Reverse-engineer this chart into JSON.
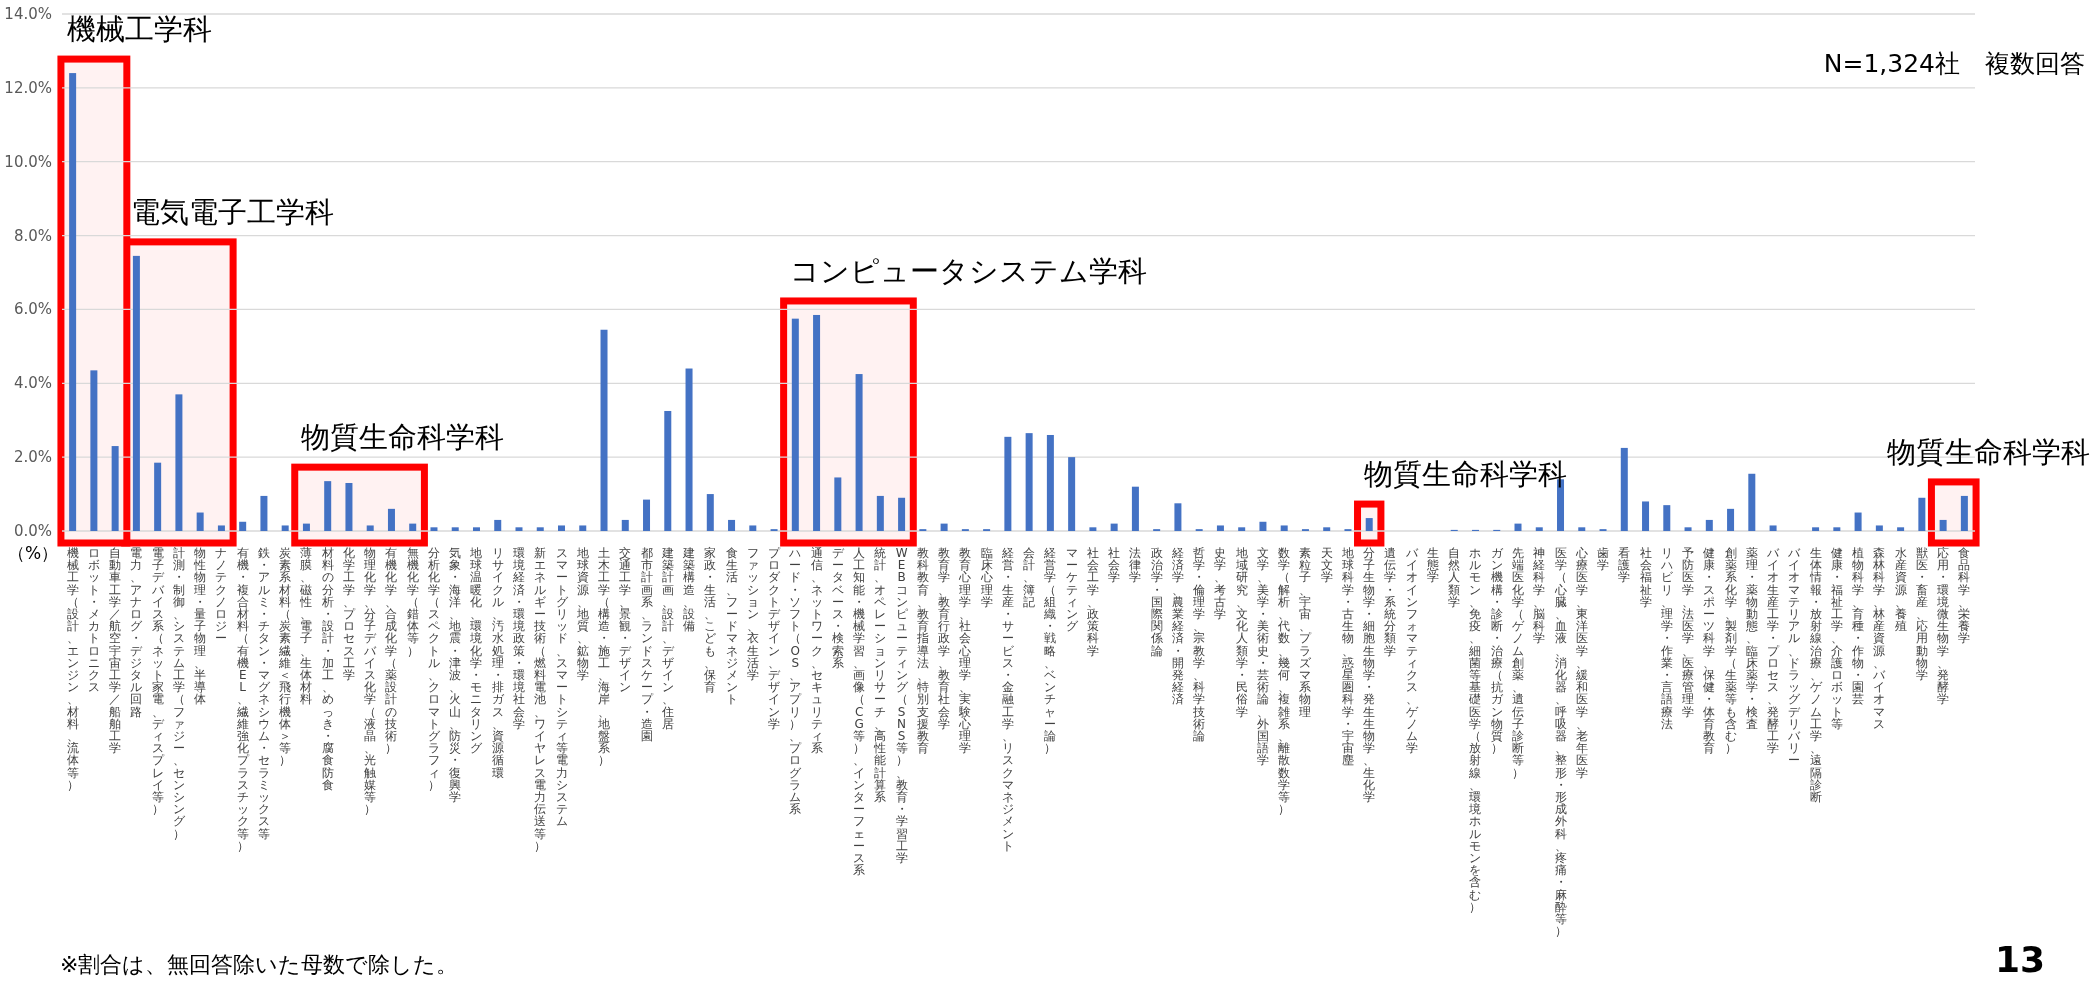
{
  "chart_data": {
    "type": "bar",
    "ylabel": "（%）",
    "color": "#4472c4",
    "grid": "y",
    "ylim": [
      0,
      14
    ],
    "yticks": [
      {
        "value": 0,
        "label": "0.0%"
      },
      {
        "value": 2,
        "label": "2.0%"
      },
      {
        "value": 4,
        "label": "4.0%"
      },
      {
        "value": 6,
        "label": "6.0%"
      },
      {
        "value": 8,
        "label": "8.0%"
      },
      {
        "value": 10,
        "label": "10.0%"
      },
      {
        "value": 12,
        "label": "12.0%"
      },
      {
        "value": 14,
        "label": "14.0%"
      }
    ],
    "categories": [
      "機械工学（設計、エンジン、材料、流体等）",
      "ロボット・メカトロニクス",
      "自動車工学／航空宇宙工学／船舶工学",
      "電力、アナログ・デジタル回路",
      "電子デバイス系（ネット家電、ディスプレイ等）",
      "計測・制御、システム工学（ファジー、センシング）",
      "物性物理・量子物理、半導体",
      "ナノテクノロジー",
      "有機・複合材料（有機EL、繊維強化プラスチック等）",
      "鉄・アルミ・チタン・マグネシウム・セラミックス等",
      "炭素系材料（炭素繊維＜飛行機体＞等）",
      "薄膜、磁性、電子、生体材料",
      "材料の分析・設計・加工、めっき・腐食防食",
      "化学工学、プロセス工学",
      "物理化学、分子デバイス化学（液晶、光触媒等）",
      "有機化学、合成化学（薬設計の技術）",
      "無機化学（錯体等）",
      "分析化学（スペクトル、クロマトグラフィ）",
      "気象・海洋、地震・津波、火山、防災・復興学",
      "地球温暖化、環境化学・モニタリング",
      "リサイクル、汚水処理・排ガス、資源循環",
      "環境経済・環境政策・環境社会学",
      "新エネルギー技術（燃料電池、ワイヤレス電力伝送等）",
      "スマートグリッド、スマートシティ等電力システム",
      "地球資源、地質、鉱物学",
      "土木工学（構造・施工、海岸、地盤系）",
      "交通工学、景観・デザイン",
      "都市計画系、ランドスケープ・造園",
      "建築計画、設計、デザイン、住居",
      "建築構造、設備",
      "家政・生活、こども、保育",
      "食生活、フードマネジメント",
      "ファッション、衣生活学",
      "プロダクトデザイン、デザイン学",
      "ハード・ソフト（OS、アプリ）、プログラム系",
      "通信、ネットワーク、セキュリティ系",
      "データベース・検索系",
      "人工知能・機械学習、画像（CG等）、インターフェース系",
      "統計、オペレーションリサーチ、高性能計算系",
      "WEBコンピューティング（SNS等）、教育・学習工学",
      "教科教育、教育指導法、特別支援教育",
      "教育学、教育行政学、教育社会学",
      "教育心理学、社会心理学、実験心理学",
      "臨床心理学",
      "経営・生産・サービス・金融工学、リスクマネジメント",
      "会計、簿記",
      "経営学（組織・戦略、ベンチャー論）",
      "マーケティング",
      "社会工学、政策科学",
      "社会学",
      "法律学",
      "政治学・国際関係論",
      "経済学、農業経済・開発経済",
      "哲学・倫理学、宗教学、科学技術論",
      "史学、考古学",
      "地域研究、文化人類学・民俗学",
      "文学、美学・美術史・芸術論、外国語学",
      "数学（解析、代数、幾何、複雑系、離散数学等）",
      "素粒子、宇宙、プラズマ系物理",
      "天文学",
      "地球科学・古生物、惑星圏科学・宇宙塵",
      "分子生物学・細胞生物学・発生生物学、生化学",
      "遺伝学・系統分類学",
      "バイオインフォマティクス、ゲノム学",
      "生態学",
      "自然人類学",
      "ホルモン、免疫、細菌等基礎医学（放射線、環境ホルモンを含む）",
      "ガン機構・診断・治療（抗ガン物質）",
      "先端医化学（ゲノム創薬、遺伝子診断等）",
      "神経科学、脳科学",
      "医学（心臓、血液、消化器、呼吸器、整形・形成外科、疼痛・麻酔等）",
      "心療医学、東洋医学、緩和医学、老年医学",
      "歯学",
      "看護学",
      "社会福祉学",
      "リハビリ、理学・作業・言語療法",
      "予防医学、法医学、医療管理学",
      "健康・スポーツ科学、保健・体育教育",
      "創薬系化学、製剤学（生薬等も含む）",
      "薬理・薬物動態、臨床薬学・検査",
      "バイオ生産工学・プロセス、発酵工学",
      "バイオマテリアル、ドラッグデリバリー",
      "生体情報・放射線治療、ゲノム工学、遠隔診断",
      "健康・福祉工学、介護ロボット等",
      "植物科学、育種・作物・園芸",
      "森林科学、林産資源、バイオマス",
      "水産資源、養殖",
      "獣医・畜産、応用動物学",
      "応用・環境微生物学、発酵学",
      "食品科学、栄養学"
    ],
    "values": [
      12.4,
      4.35,
      2.3,
      7.45,
      1.85,
      3.7,
      0.5,
      0.15,
      0.25,
      0.95,
      0.15,
      0.2,
      1.35,
      1.3,
      0.15,
      0.6,
      0.2,
      0.1,
      0.1,
      0.1,
      0.3,
      0.1,
      0.1,
      0.15,
      0.15,
      5.45,
      0.3,
      0.85,
      3.25,
      4.4,
      1.0,
      0.3,
      0.15,
      0.05,
      5.75,
      5.85,
      1.45,
      4.25,
      0.95,
      0.9,
      0.05,
      0.2,
      0.05,
      0.05,
      2.55,
      2.65,
      2.6,
      2.0,
      0.1,
      0.2,
      1.2,
      0.05,
      0.75,
      0.05,
      0.15,
      0.1,
      0.25,
      0.15,
      0.05,
      0.1,
      0.05,
      0.35,
      0,
      0,
      0,
      0.03,
      0.03,
      0.03,
      0.2,
      0.1,
      1.4,
      0.1,
      0.05,
      2.25,
      0.8,
      0.7,
      0.1,
      0.3,
      0.6,
      1.55,
      0.15,
      0,
      0.1,
      0.1,
      0.5,
      0.15,
      0.1,
      0.9,
      0.3,
      0.95
    ],
    "bands": [
      {
        "axis": "x",
        "from": "機械工学（設計、エンジン、材料、流体等）",
        "to": "自動車工学／航空宇宙工学／船舶工学",
        "label": "機械工学科",
        "color": "#ff0000"
      },
      {
        "axis": "x",
        "from": "電力、アナログ・デジタル回路",
        "to": "ナノテクノロジー",
        "label": "電気電子工学科",
        "color": "#ff0000"
      },
      {
        "axis": "x",
        "from": "薄膜、磁性、電子、生体材料",
        "to": "無機化学（錯体等）",
        "label": "物質生命科学科",
        "color": "#ff0000"
      },
      {
        "axis": "x",
        "from": "ハード・ソフト（OS、アプリ）、プログラム系",
        "to": "WEBコンピューティング（SNS等）、教育・学習工学",
        "label": "コンピュータシステム学科",
        "color": "#ff0000"
      },
      {
        "axis": "x",
        "from": "分子生物学・細胞生物学・発生生物学、生化学",
        "to": "分子生物学・細胞生物学・発生生物学、生化学",
        "label": "物質生命科学科",
        "color": "#ff0000"
      },
      {
        "axis": "x",
        "from": "応用・環境微生物学、発酵学",
        "to": "食品科学、栄養学",
        "label": "物質生命科学科",
        "color": "#ff0000"
      }
    ],
    "annotations": [
      "N=1,324社　複数回答",
      "※割合は、無回答除いた母数で除した。",
      "13"
    ]
  }
}
